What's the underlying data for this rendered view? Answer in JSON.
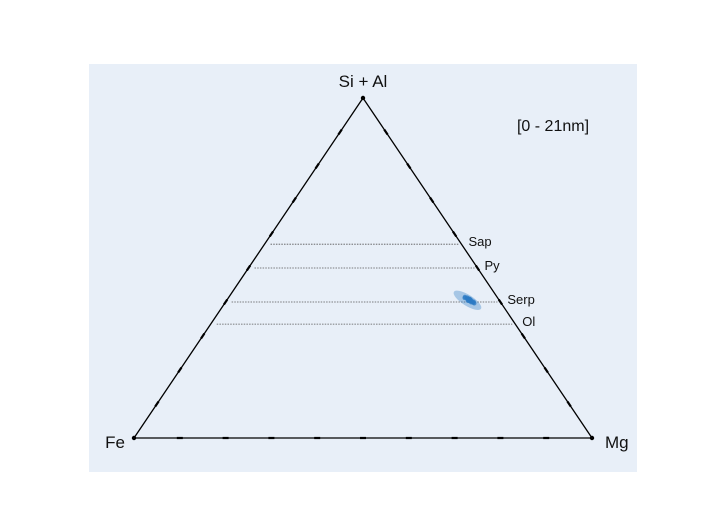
{
  "chart_data": {
    "type": "scatter",
    "subtype": "ternary",
    "title": "",
    "annotation": "[0 - 21nm]",
    "vertices": {
      "top": "Si + Al",
      "left": "Fe",
      "right": "Mg"
    },
    "tick_fractions": [
      0.1,
      0.2,
      0.3,
      0.4,
      0.5,
      0.6,
      0.7,
      0.8,
      0.9
    ],
    "reference_lines": [
      {
        "label": "Sap",
        "top_fraction": 0.57
      },
      {
        "label": "Py",
        "top_fraction": 0.5
      },
      {
        "label": "Serp",
        "top_fraction": 0.4
      },
      {
        "label": "Ol",
        "top_fraction": 0.335
      }
    ],
    "points": {
      "name": "",
      "color": "#2c7bc4",
      "center": {
        "top": 0.405,
        "fe": 0.065
      },
      "values": [
        [
          0.415,
          0.07
        ],
        [
          0.41,
          0.068
        ],
        [
          0.408,
          0.066
        ],
        [
          0.405,
          0.064
        ],
        [
          0.403,
          0.063
        ],
        [
          0.4,
          0.061
        ],
        [
          0.398,
          0.06
        ],
        [
          0.412,
          0.072
        ],
        [
          0.406,
          0.067
        ],
        [
          0.402,
          0.065
        ],
        [
          0.409,
          0.062
        ],
        [
          0.404,
          0.069
        ],
        [
          0.399,
          0.064
        ],
        [
          0.401,
          0.058
        ],
        [
          0.413,
          0.066
        ],
        [
          0.407,
          0.063
        ],
        [
          0.396,
          0.059
        ],
        [
          0.41,
          0.064
        ],
        [
          0.405,
          0.061
        ],
        [
          0.403,
          0.067
        ]
      ]
    },
    "colors": {
      "background": "#e8eff8",
      "axis": "#000000",
      "reference_line": "#555555",
      "points": "#2c7bc4"
    }
  }
}
